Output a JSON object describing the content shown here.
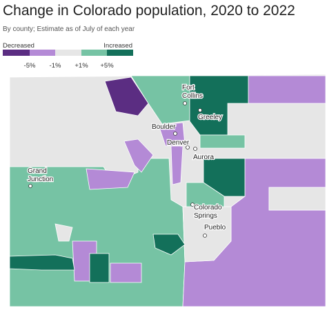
{
  "header": {
    "title": "Change in Colorado population, 2020 to 2022",
    "subtitle": "By county; Estimate as of July of each year"
  },
  "legend": {
    "low_label": "Decreased",
    "high_label": "Increased",
    "breaks": [
      "-5%",
      "-1%",
      "+1%",
      "+5%"
    ]
  },
  "cities": [
    {
      "lines": [
        "Fort",
        "Collins"
      ]
    },
    {
      "lines": [
        "Greeley"
      ]
    },
    {
      "lines": [
        "Boulder"
      ]
    },
    {
      "lines": [
        "Denver"
      ]
    },
    {
      "lines": [
        "Aurora"
      ]
    },
    {
      "lines": [
        "Grand",
        "Junction"
      ]
    },
    {
      "lines": [
        "Colorado",
        "Springs"
      ]
    },
    {
      "lines": [
        "Pueblo"
      ]
    }
  ]
}
